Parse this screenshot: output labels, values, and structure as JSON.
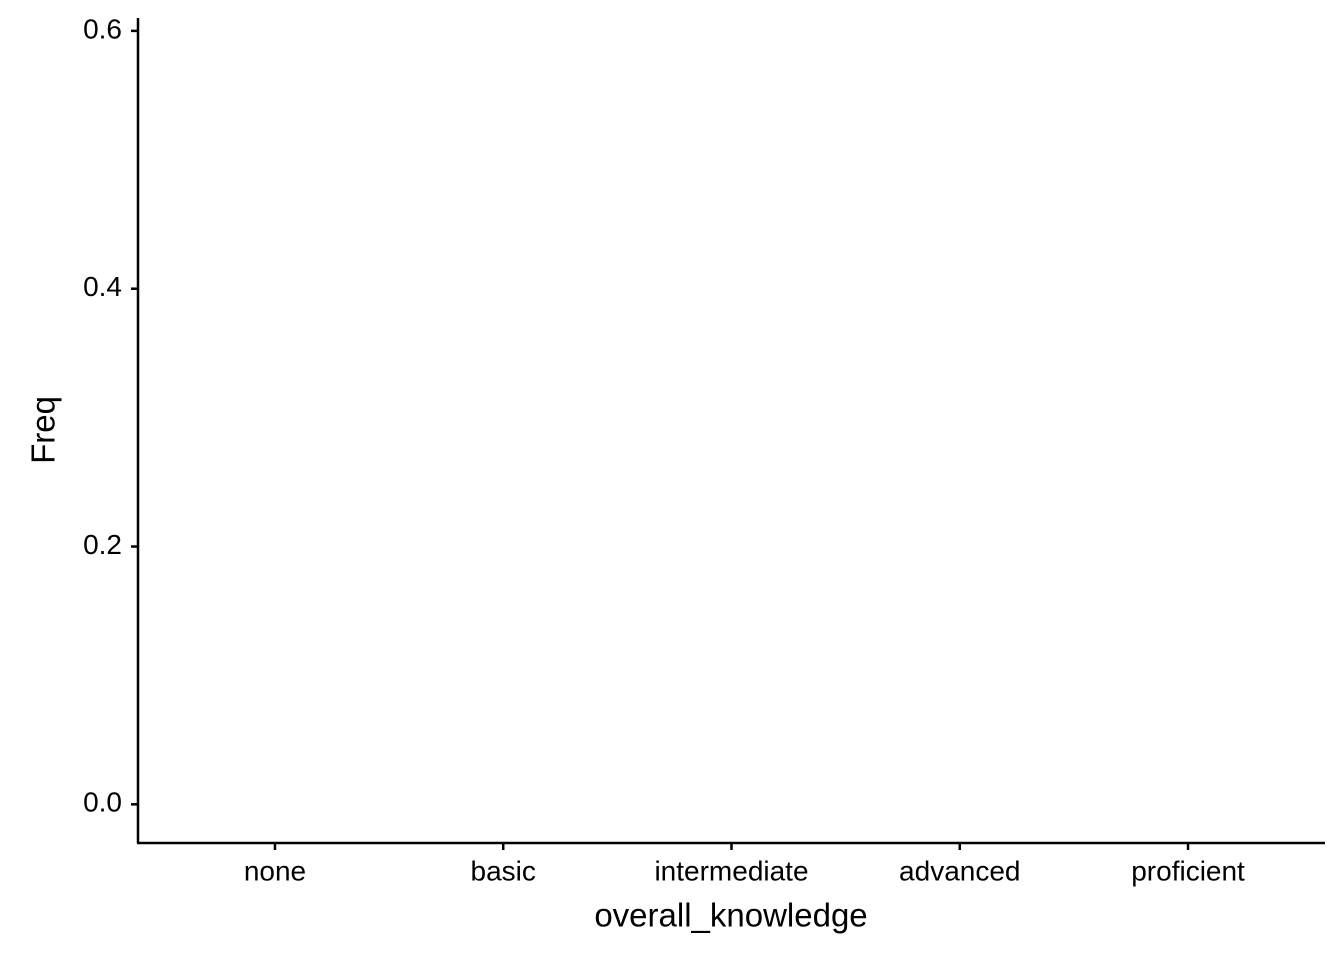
{
  "chart_data": {
    "type": "bar",
    "x_label": "overall_knowledge",
    "y_label": "Freq",
    "categories": [
      "none",
      "basic",
      "intermediate",
      "advanced",
      "proficient"
    ],
    "ylim": [
      -0.03,
      0.61
    ],
    "yticks": [
      {
        "value": 0,
        "label": "0.0"
      },
      0.2,
      0.4,
      0.6
    ]
  }
}
